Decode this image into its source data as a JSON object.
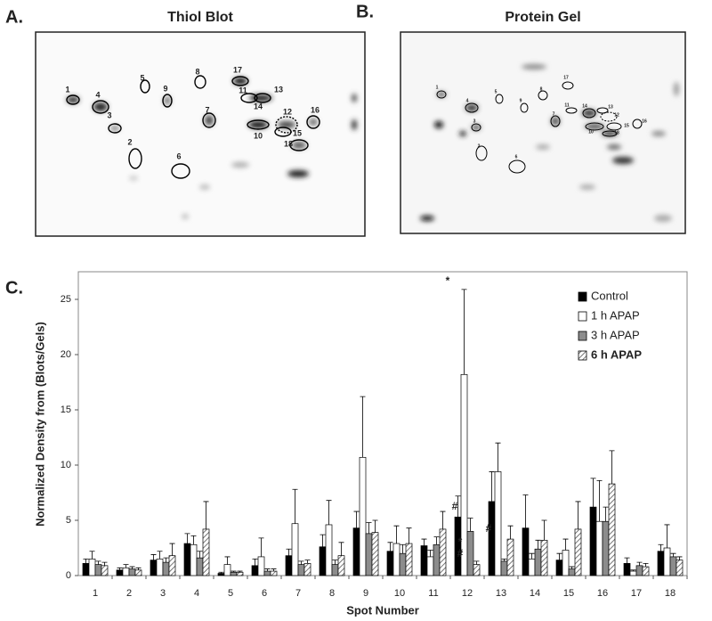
{
  "thiol_blot": {
    "label": "A.",
    "title": "Thiol Blot",
    "spots": [
      "1",
      "2",
      "3",
      "4",
      "5",
      "6",
      "7",
      "8",
      "9",
      "10",
      "11",
      "12",
      "13",
      "14",
      "15",
      "16",
      "17",
      "18"
    ]
  },
  "protein_gel": {
    "label": "B.",
    "title": "Protein Gel",
    "spots": [
      "1",
      "2",
      "3",
      "4",
      "5",
      "6",
      "7",
      "8",
      "9",
      "10",
      "11",
      "12",
      "13",
      "14",
      "15",
      "16",
      "17",
      "18"
    ]
  },
  "chart_data": {
    "type": "bar",
    "label": "C.",
    "y_label": "Normalized Density from (Blots/Gels)",
    "x_label": "Spot Number",
    "categories": [
      "1",
      "2",
      "3",
      "4",
      "5",
      "6",
      "7",
      "8",
      "9",
      "10",
      "11",
      "12",
      "13",
      "14",
      "15",
      "16",
      "17",
      "18"
    ],
    "ylim": [
      0,
      27.5
    ],
    "yticks": [
      0,
      5,
      10,
      15,
      20,
      25
    ],
    "legend": "upper right",
    "series": [
      {
        "name": "Control",
        "color": "#000000",
        "values": [
          1.1,
          0.5,
          1.4,
          2.9,
          0.2,
          0.9,
          1.8,
          2.6,
          4.3,
          2.2,
          2.7,
          5.3,
          6.7,
          4.3,
          1.4,
          6.2,
          1.1,
          2.2
        ],
        "errors": [
          0.4,
          0.2,
          0.5,
          0.9,
          0.1,
          0.6,
          0.6,
          1.1,
          1.5,
          0.8,
          0.6,
          1.9,
          2.7,
          3.0,
          0.6,
          2.6,
          0.5,
          0.6
        ]
      },
      {
        "name": "1 h APAP",
        "color": "#ffffff",
        "values": [
          1.5,
          0.7,
          1.5,
          2.8,
          1.0,
          1.7,
          4.7,
          4.6,
          10.7,
          2.9,
          1.7,
          18.2,
          9.4,
          1.5,
          2.3,
          4.9,
          0.4,
          2.5
        ],
        "errors": [
          0.7,
          0.3,
          0.7,
          0.8,
          0.7,
          1.7,
          3.1,
          2.2,
          5.5,
          1.6,
          0.6,
          7.7,
          2.6,
          0.5,
          1.0,
          3.7,
          0.1,
          2.1
        ]
      },
      {
        "name": "3 h APAP",
        "color": "#8c8c8c",
        "values": [
          1.0,
          0.6,
          1.2,
          1.6,
          0.3,
          0.4,
          1.0,
          1.0,
          3.8,
          2.0,
          2.8,
          4.0,
          1.3,
          2.4,
          0.6,
          4.9,
          0.9,
          1.7
        ],
        "errors": [
          0.3,
          0.2,
          0.4,
          0.6,
          0.1,
          0.2,
          0.3,
          0.4,
          1.0,
          0.8,
          0.7,
          1.2,
          0.2,
          0.8,
          0.2,
          1.3,
          0.3,
          0.3
        ]
      },
      {
        "name": "6 h APAP",
        "color": "#ffffff",
        "hatch": true,
        "values": [
          0.9,
          0.5,
          1.8,
          4.2,
          0.3,
          0.4,
          1.1,
          1.8,
          3.9,
          2.9,
          4.2,
          1.0,
          3.3,
          3.2,
          4.2,
          8.3,
          0.8,
          1.4
        ],
        "errors": [
          0.3,
          0.2,
          1.1,
          2.5,
          0.1,
          0.2,
          0.3,
          1.2,
          1.1,
          1.4,
          1.6,
          0.3,
          1.2,
          1.8,
          2.5,
          3.0,
          0.3,
          0.3
        ]
      }
    ],
    "annotations": [
      "*",
      "#",
      "*",
      "#",
      "#"
    ]
  }
}
